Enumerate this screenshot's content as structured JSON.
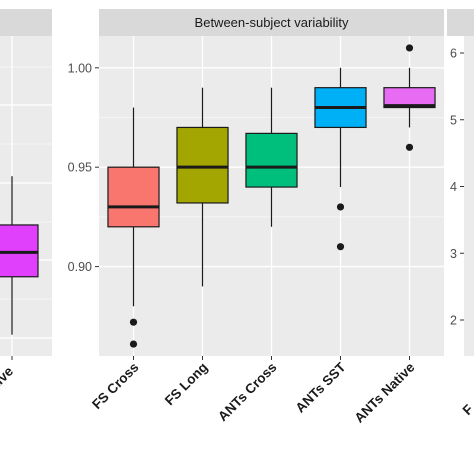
{
  "chart_data": [
    {
      "panel": "left (partially visible)",
      "type": "box",
      "title": "",
      "categories": [
        "ANTs Native"
      ],
      "visible_category_text": [
        "ative"
      ],
      "boxes": [
        {
          "category": "ANTs Native",
          "color": "#E040FB",
          "q1": 0.881,
          "median": 0.889,
          "q3": 0.898,
          "whisker_low": 0.862,
          "whisker_high": 0.914,
          "outliers": []
        }
      ],
      "ylim": [
        0.855,
        0.96
      ]
    },
    {
      "panel": "middle",
      "type": "box",
      "title": "Between-subject variability",
      "xlabel": "",
      "ylabel": "",
      "ylim": [
        0.855,
        1.016
      ],
      "yticks": [
        0.9,
        0.95,
        1.0
      ],
      "ytick_labels": [
        "0.90",
        "0.95",
        "1.00"
      ],
      "categories": [
        "FS Cross",
        "FS Long",
        "ANTs Cross",
        "ANTs SST",
        "ANTs Native"
      ],
      "boxes": [
        {
          "category": "FS Cross",
          "color": "#F8766D",
          "q1": 0.92,
          "median": 0.93,
          "q3": 0.95,
          "whisker_low": 0.88,
          "whisker_high": 0.98,
          "outliers": [
            0.872,
            0.861
          ]
        },
        {
          "category": "FS Long",
          "color": "#A3A500",
          "q1": 0.932,
          "median": 0.95,
          "q3": 0.97,
          "whisker_low": 0.89,
          "whisker_high": 0.99,
          "outliers": []
        },
        {
          "category": "ANTs Cross",
          "color": "#00BF7D",
          "q1": 0.94,
          "median": 0.95,
          "q3": 0.967,
          "whisker_low": 0.92,
          "whisker_high": 0.99,
          "outliers": []
        },
        {
          "category": "ANTs SST",
          "color": "#00B0F6",
          "q1": 0.97,
          "median": 0.98,
          "q3": 0.99,
          "whisker_low": 0.94,
          "whisker_high": 1.0,
          "outliers": [
            0.93,
            0.91
          ]
        },
        {
          "category": "ANTs Native",
          "color": "#E76BF3",
          "q1": 0.98,
          "median": 0.981,
          "q3": 0.99,
          "whisker_low": 0.97,
          "whisker_high": 1.0,
          "outliers": [
            1.01,
            0.96
          ]
        }
      ],
      "grid": true,
      "legend": "none"
    },
    {
      "panel": "right (partially visible)",
      "type": "box",
      "title": "",
      "yticks": [
        2,
        3,
        4,
        5,
        6
      ],
      "ytick_labels": [
        "2",
        "3",
        "4",
        "5",
        "6"
      ],
      "visible_category_text": [
        "F"
      ]
    }
  ],
  "colors": {
    "panel_background": "#EBEBEB",
    "strip_background": "#D9D9D9",
    "gridline": "#FFFFFF"
  }
}
